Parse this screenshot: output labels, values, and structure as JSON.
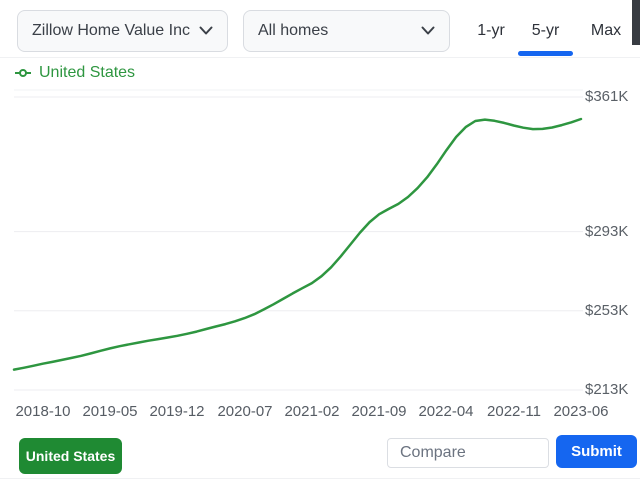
{
  "header": {
    "metric_dropdown": {
      "value": "Zillow Home Value Inc"
    },
    "home_type_dropdown": {
      "value": "All homes"
    },
    "range_tabs": [
      {
        "label": "1-yr",
        "active": false
      },
      {
        "label": "5-yr",
        "active": true
      },
      {
        "label": "Max",
        "active": false
      }
    ]
  },
  "legend": {
    "label": "United States",
    "color": "#2e9640"
  },
  "chart_data": {
    "type": "line",
    "unit": "USD thousands",
    "grid": true,
    "y_axis_side": "right",
    "x_ticks": [
      "2018-10",
      "2019-05",
      "2019-12",
      "2020-07",
      "2021-02",
      "2021-09",
      "2022-04",
      "2022-11",
      "2023-06"
    ],
    "y_ticks": [
      {
        "label": "$361K",
        "value": 361
      },
      {
        "label": "$293K",
        "value": 293
      },
      {
        "label": "$253K",
        "value": 253
      },
      {
        "label": "$213K",
        "value": 213
      }
    ],
    "ylim": [
      213,
      361
    ],
    "series": [
      {
        "name": "United States",
        "color": "#2e9640",
        "x": [
          "2018-07",
          "2018-08",
          "2018-09",
          "2018-10",
          "2018-11",
          "2018-12",
          "2019-01",
          "2019-02",
          "2019-03",
          "2019-04",
          "2019-05",
          "2019-06",
          "2019-07",
          "2019-08",
          "2019-09",
          "2019-10",
          "2019-11",
          "2019-12",
          "2020-01",
          "2020-02",
          "2020-03",
          "2020-04",
          "2020-05",
          "2020-06",
          "2020-07",
          "2020-08",
          "2020-09",
          "2020-10",
          "2020-11",
          "2020-12",
          "2021-01",
          "2021-02",
          "2021-03",
          "2021-04",
          "2021-05",
          "2021-06",
          "2021-07",
          "2021-08",
          "2021-09",
          "2021-10",
          "2021-11",
          "2021-12",
          "2022-01",
          "2022-02",
          "2022-03",
          "2022-04",
          "2022-05",
          "2022-06",
          "2022-07",
          "2022-08",
          "2022-09",
          "2022-10",
          "2022-11",
          "2022-12",
          "2023-01",
          "2023-02",
          "2023-03",
          "2023-04",
          "2023-05",
          "2023-06"
        ],
        "values": [
          223.3,
          224.2,
          225.2,
          226.3,
          227.2,
          228.2,
          229.2,
          230.3,
          231.5,
          232.8,
          234.0,
          235.1,
          236.1,
          237.0,
          237.9,
          238.7,
          239.5,
          240.4,
          241.4,
          242.5,
          243.8,
          245.1,
          246.3,
          247.7,
          249.3,
          251.3,
          253.7,
          256.3,
          259.0,
          261.8,
          264.4,
          267.0,
          270.5,
          275.0,
          280.5,
          286.5,
          292.5,
          297.8,
          301.8,
          304.5,
          307.0,
          310.5,
          315.0,
          320.5,
          327.0,
          334.2,
          340.8,
          345.8,
          348.9,
          349.6,
          349.0,
          347.9,
          346.6,
          345.5,
          344.8,
          344.9,
          345.6,
          346.8,
          348.2,
          349.9
        ]
      }
    ]
  },
  "footer": {
    "region_chip": "United States",
    "compare_placeholder": "Compare",
    "submit_label": "Submit"
  },
  "colors": {
    "accent_blue": "#1566f0",
    "chip_green": "#1f8a33",
    "line_green": "#2e9640",
    "grid_line": "#ededf0",
    "tick_text": "#5a6067"
  }
}
